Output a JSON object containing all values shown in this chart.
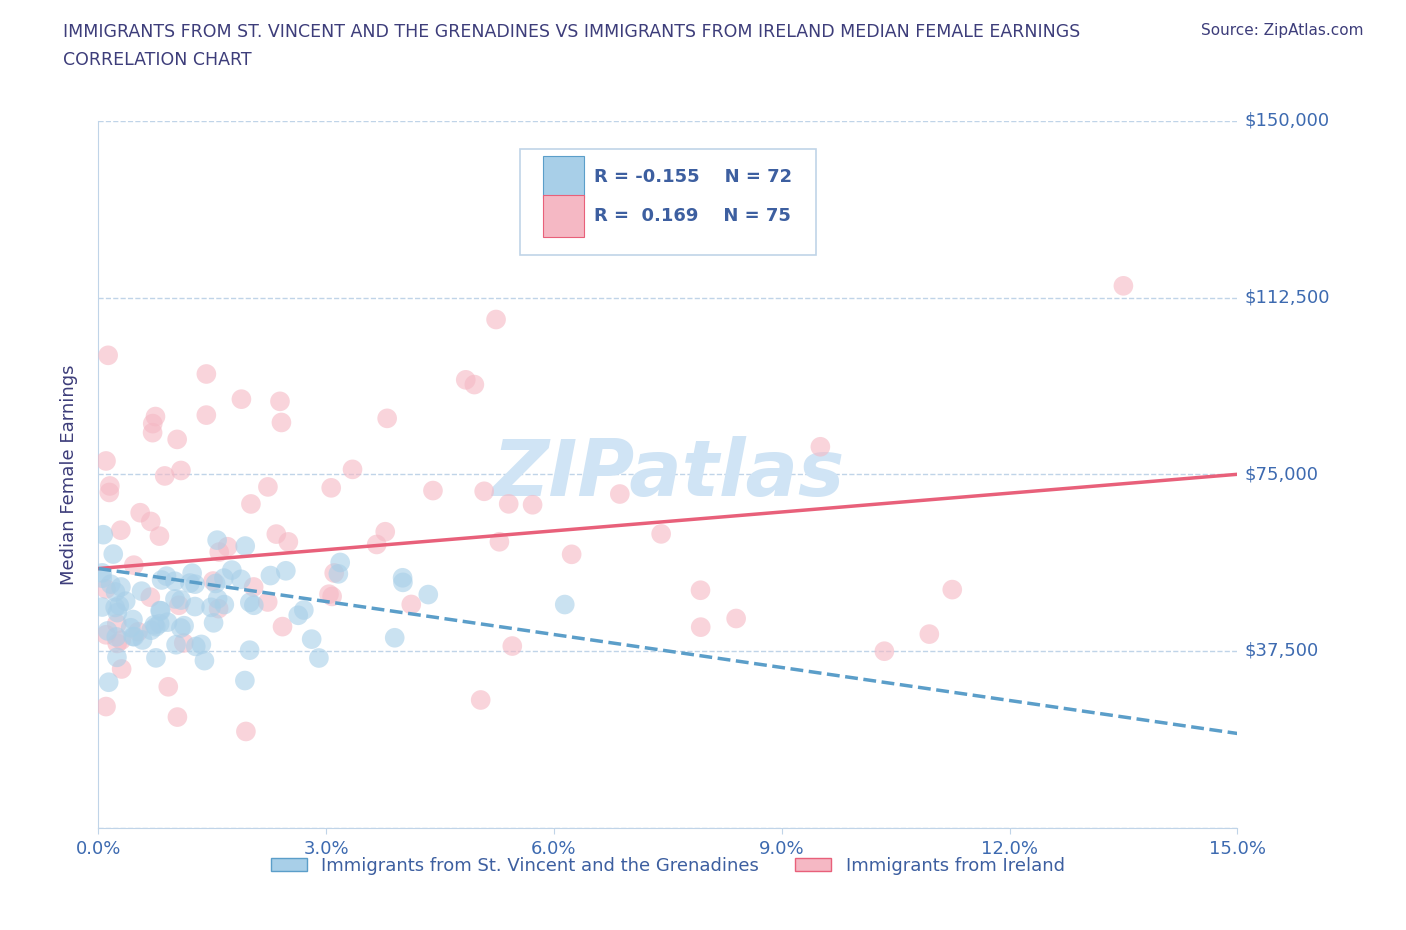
{
  "title_line1": "IMMIGRANTS FROM ST. VINCENT AND THE GRENADINES VS IMMIGRANTS FROM IRELAND MEDIAN FEMALE EARNINGS",
  "title_line2": "CORRELATION CHART",
  "source_text": "Source: ZipAtlas.com",
  "ylabel": "Median Female Earnings",
  "xlim": [
    0.0,
    0.15
  ],
  "ylim": [
    0,
    150000
  ],
  "yticks": [
    0,
    37500,
    75000,
    112500,
    150000
  ],
  "ytick_labels": [
    "",
    "$37,500",
    "$75,000",
    "$112,500",
    "$150,000"
  ],
  "xtick_labels": [
    "0.0%",
    "3.0%",
    "6.0%",
    "9.0%",
    "12.0%",
    "15.0%"
  ],
  "blue_color": "#a8cfe8",
  "pink_color": "#f5b8c4",
  "blue_line_color": "#5b9ec9",
  "pink_line_color": "#e8607a",
  "legend_text_color": "#3d5fa0",
  "title_color": "#3d3d7a",
  "axis_color": "#3d6ab0",
  "watermark": "ZIPatlas",
  "watermark_color": "#d0e4f5",
  "R_blue": -0.155,
  "N_blue": 72,
  "R_pink": 0.169,
  "N_pink": 75,
  "background_color": "#ffffff",
  "grid_color": "#c0d4e8",
  "legend_label_blue": "Immigrants from St. Vincent and the Grenadines",
  "legend_label_pink": "Immigrants from Ireland",
  "pink_line_y0": 55000,
  "pink_line_y1": 75000,
  "blue_line_y0": 55000,
  "blue_line_y1": 20000
}
